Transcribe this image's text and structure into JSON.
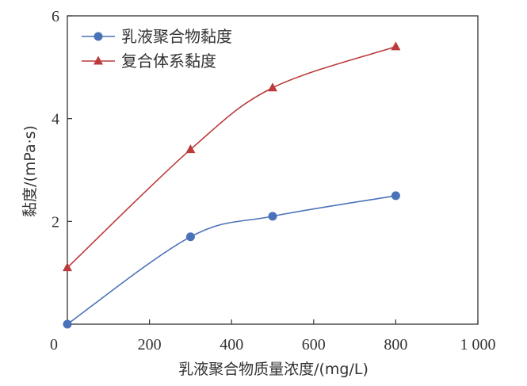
{
  "chart_data": {
    "type": "line",
    "xlabel": "乳液聚合物质量浓度/(mg/L)",
    "ylabel": "黏度/(mPa·s)",
    "xlim": [
      0,
      1000
    ],
    "ylim": [
      0,
      6
    ],
    "x_ticks": [
      0,
      200,
      400,
      600,
      800,
      1000
    ],
    "x_tick_labels": [
      "0",
      "200",
      "400",
      "600",
      "800",
      "1 000"
    ],
    "y_ticks": [
      2,
      4,
      6
    ],
    "y_tick_labels": [
      "2",
      "4",
      "6"
    ],
    "grid": false,
    "legend_position": "top-left",
    "smooth": true,
    "series": [
      {
        "name": "乳液聚合物黏度",
        "marker": "circle",
        "color": "#4a72b8",
        "x": [
          0,
          300,
          500,
          800
        ],
        "y": [
          0.0,
          1.7,
          2.1,
          2.5
        ]
      },
      {
        "name": "复合体系黏度",
        "marker": "triangle",
        "color": "#bc3a3a",
        "x": [
          0,
          300,
          500,
          800
        ],
        "y": [
          1.1,
          3.4,
          4.6,
          5.4
        ]
      }
    ]
  }
}
